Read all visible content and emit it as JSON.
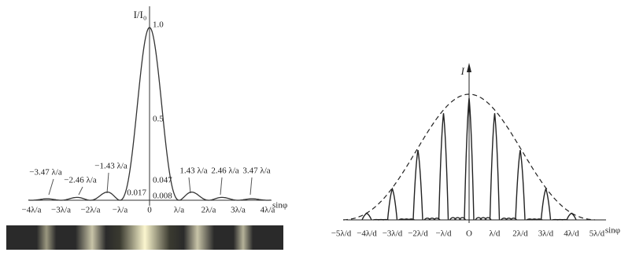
{
  "single_slit": {
    "axis_label": "I/I₀",
    "ticks": [
      "1.0",
      "0.5",
      "0.047",
      "0.017",
      "0.008"
    ],
    "annotations": [
      "−3.47 λ/a",
      "−2.46 λ/a",
      "−1.43 λ/a",
      "1.43 λ/a",
      "2.46 λ/a",
      "3.47 λ/a"
    ],
    "x_labels": [
      "−4λ/a",
      "−3λ/a",
      "−2λ/a",
      "−λ/a",
      "0",
      "λ/a",
      "2λ/a",
      "3λ/a",
      "4λ/a"
    ],
    "x_axis_label": "sinφ"
  },
  "grating": {
    "axis_label": "I",
    "x_labels": [
      "−5λ/d",
      "−4λ/d",
      "−3λ/d",
      "−2λ/d",
      "−λ/d",
      "O",
      "λ/d",
      "2λ/d",
      "3λ/d",
      "4λ/d",
      "5λ/d"
    ],
    "x_axis_label": "sinφ"
  }
}
